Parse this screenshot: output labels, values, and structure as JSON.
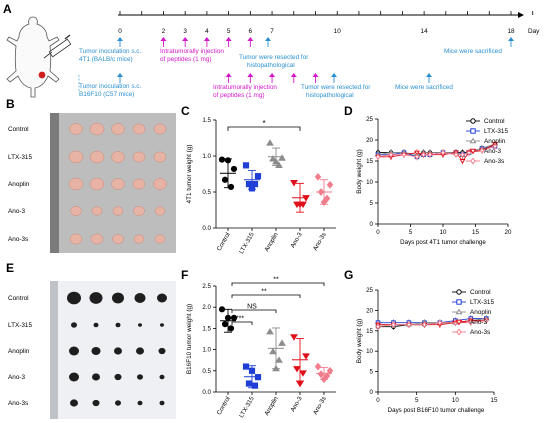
{
  "panels": {
    "A": {
      "label": "A",
      "day_label": "Day",
      "ticks": [
        "0",
        "2",
        "3",
        "4",
        "5",
        "6",
        "7",
        "10",
        "14",
        "18"
      ],
      "tick_days": [
        0,
        2,
        3,
        4,
        5,
        6,
        7,
        10,
        14,
        18
      ],
      "row1": {
        "inoc": "Tumor inoculation s.c.",
        "inoc2": "4T1 (BALB/c mice)",
        "inj": "Intratumorally injection",
        "inj2": "of peptides (1 mg)",
        "resect": "Tumor were resected for",
        "resect2": "histopathological",
        "sacrifice": "Mice were sacrificed"
      },
      "row2": {
        "inoc": "Tumor inoculation s.c.",
        "inoc2": "B16F10 (C57 mice)",
        "inj": "Intratumorally injection",
        "inj2": "of peptides (1 mg)",
        "resect": "Tumor were resected for",
        "resect2": "histopathological",
        "sacrifice": "Mice were sacrificed"
      },
      "colors": {
        "blue": "#2a8fd0",
        "magenta": "#d316c9"
      }
    },
    "B": {
      "label": "B",
      "rows": [
        "Control",
        "LTX-315",
        "Anoplin",
        "Ano-3",
        "Ano-3s"
      ]
    },
    "E": {
      "label": "E",
      "rows": [
        "Control",
        "LTX-315",
        "Anoplin",
        "Ano-3",
        "Ano-3s"
      ]
    },
    "C": {
      "label": "C",
      "significance": "*"
    },
    "F": {
      "label": "F",
      "significance": [
        "***",
        "NS",
        "**",
        "**"
      ]
    },
    "D": {
      "label": "D"
    },
    "G": {
      "label": "G"
    }
  },
  "chart_data": [
    {
      "id": "C",
      "type": "scatter",
      "ylabel": "4T1 tumor weight (g)",
      "categories": [
        "Control",
        "LTX-315",
        "Anoplin",
        "Ano-3",
        "Ano-3s"
      ],
      "colors": [
        "#000000",
        "#1f3fd6",
        "#8c8c8c",
        "#e0101a",
        "#f07c8c"
      ],
      "markers": [
        "circle",
        "square",
        "triangle",
        "triangle-down",
        "diamond"
      ],
      "filled": [
        true,
        true,
        true,
        true,
        true
      ],
      "ylim": [
        0,
        1.5
      ],
      "yticks": [
        0.0,
        0.5,
        1.0,
        1.5
      ],
      "means": [
        0.76,
        0.67,
        0.99,
        0.42,
        0.5
      ],
      "sd": [
        0.2,
        0.13,
        0.12,
        0.2,
        0.17
      ],
      "points": [
        [
          0.95,
          0.82,
          0.67,
          0.57,
          0.94
        ],
        [
          0.87,
          0.72,
          0.61,
          0.61,
          0.55
        ],
        [
          1.18,
          0.97,
          0.96,
          0.87,
          0.92
        ],
        [
          0.63,
          0.42,
          0.33,
          0.33,
          0.33
        ],
        [
          0.71,
          0.6,
          0.5,
          0.41,
          0.36
        ]
      ]
    },
    {
      "id": "F",
      "type": "scatter",
      "ylabel": "B16F10 tumor weight (g)",
      "categories": [
        "Control",
        "LTX-315",
        "Anoplin",
        "Ano-3",
        "Ano-3s"
      ],
      "colors": [
        "#000000",
        "#1f3fd6",
        "#8c8c8c",
        "#e0101a",
        "#f07c8c"
      ],
      "markers": [
        "circle",
        "square",
        "triangle",
        "triangle-down",
        "diamond"
      ],
      "filled": [
        true,
        true,
        true,
        true,
        true
      ],
      "ylim": [
        0,
        2.5
      ],
      "yticks": [
        0.0,
        0.5,
        1.0,
        1.5,
        2.0,
        2.5
      ],
      "means": [
        1.68,
        0.36,
        1.03,
        0.76,
        0.44
      ],
      "sd": [
        0.27,
        0.26,
        0.48,
        0.5,
        0.14
      ],
      "points": [
        [
          1.95,
          1.75,
          1.6,
          1.5,
          1.75
        ],
        [
          0.6,
          0.35,
          0.2,
          0.15,
          0.5
        ],
        [
          1.42,
          1.15,
          0.95,
          0.75,
          0.55
        ],
        [
          1.3,
          0.85,
          0.55,
          0.45,
          0.2
        ],
        [
          0.6,
          0.5,
          0.42,
          0.38,
          0.3
        ]
      ]
    },
    {
      "id": "D",
      "type": "line",
      "xlabel": "Days post 4T1 tumor challenge",
      "ylabel": "Body weight (g)",
      "xlim": [
        0,
        20
      ],
      "xticks": [
        0,
        5,
        10,
        15,
        20
      ],
      "ylim": [
        0,
        25
      ],
      "yticks": [
        0,
        5,
        10,
        15,
        20,
        25
      ],
      "x": [
        0,
        2,
        4,
        6,
        7,
        8,
        10,
        12,
        13,
        14,
        16,
        18
      ],
      "legend_position": "upper-right",
      "series": [
        {
          "name": "Control",
          "color": "#000000",
          "marker": "circle-open",
          "values": [
            17,
            17,
            17,
            16,
            17,
            17,
            17,
            17,
            17,
            17,
            18,
            19
          ]
        },
        {
          "name": "LTX-315",
          "color": "#1f3fd6",
          "marker": "square-open",
          "values": [
            16.5,
            16.5,
            17,
            16,
            16.5,
            16.5,
            17,
            17,
            16.5,
            17,
            18,
            18.5
          ]
        },
        {
          "name": "Anoplin",
          "color": "#8c8c8c",
          "marker": "triangle-open",
          "values": [
            16.5,
            17,
            17,
            16.5,
            17,
            17,
            17,
            17,
            16.5,
            17,
            18,
            19
          ]
        },
        {
          "name": "Ano-3",
          "color": "#e0101a",
          "marker": "triangle-down-open",
          "values": [
            16,
            16,
            16.5,
            17,
            16.5,
            16.5,
            16.5,
            17,
            15,
            17,
            17.5,
            19
          ]
        },
        {
          "name": "Ano-3s",
          "color": "#f07c8c",
          "marker": "diamond-open",
          "values": [
            16,
            16.5,
            16.5,
            16,
            16.5,
            16.5,
            17,
            16.5,
            16.5,
            17,
            17.5,
            18.5
          ]
        }
      ]
    },
    {
      "id": "G",
      "type": "line",
      "xlabel": "Days post B16F10 tumor challenge",
      "ylabel": "Body weight (g)",
      "xlim": [
        0,
        15
      ],
      "xticks": [
        0,
        5,
        10,
        15
      ],
      "ylim": [
        0,
        25
      ],
      "yticks": [
        0,
        5,
        10,
        15,
        20,
        25
      ],
      "x": [
        0,
        2,
        4,
        6,
        8,
        10,
        12,
        14
      ],
      "legend_position": "upper-right",
      "series": [
        {
          "name": "Control",
          "color": "#000000",
          "marker": "circle-open",
          "values": [
            16,
            16,
            16.5,
            16.5,
            17,
            17,
            17.5,
            18
          ]
        },
        {
          "name": "LTX-315",
          "color": "#1f3fd6",
          "marker": "square-open",
          "values": [
            17,
            17,
            17,
            17,
            17,
            17.5,
            18,
            18
          ]
        },
        {
          "name": "Anoplin",
          "color": "#8c8c8c",
          "marker": "triangle-open",
          "values": [
            16.5,
            16.5,
            16.5,
            17,
            17,
            17,
            17.5,
            18
          ]
        },
        {
          "name": "Ano-3",
          "color": "#e0101a",
          "marker": "triangle-down-open",
          "values": [
            16.5,
            16.5,
            16.5,
            16.5,
            16.5,
            17,
            17.5,
            17.5
          ]
        },
        {
          "name": "Ano-3s",
          "color": "#f07c8c",
          "marker": "diamond-open",
          "values": [
            16,
            16.5,
            16.5,
            16.5,
            17,
            17,
            17,
            17.5
          ]
        }
      ]
    }
  ]
}
